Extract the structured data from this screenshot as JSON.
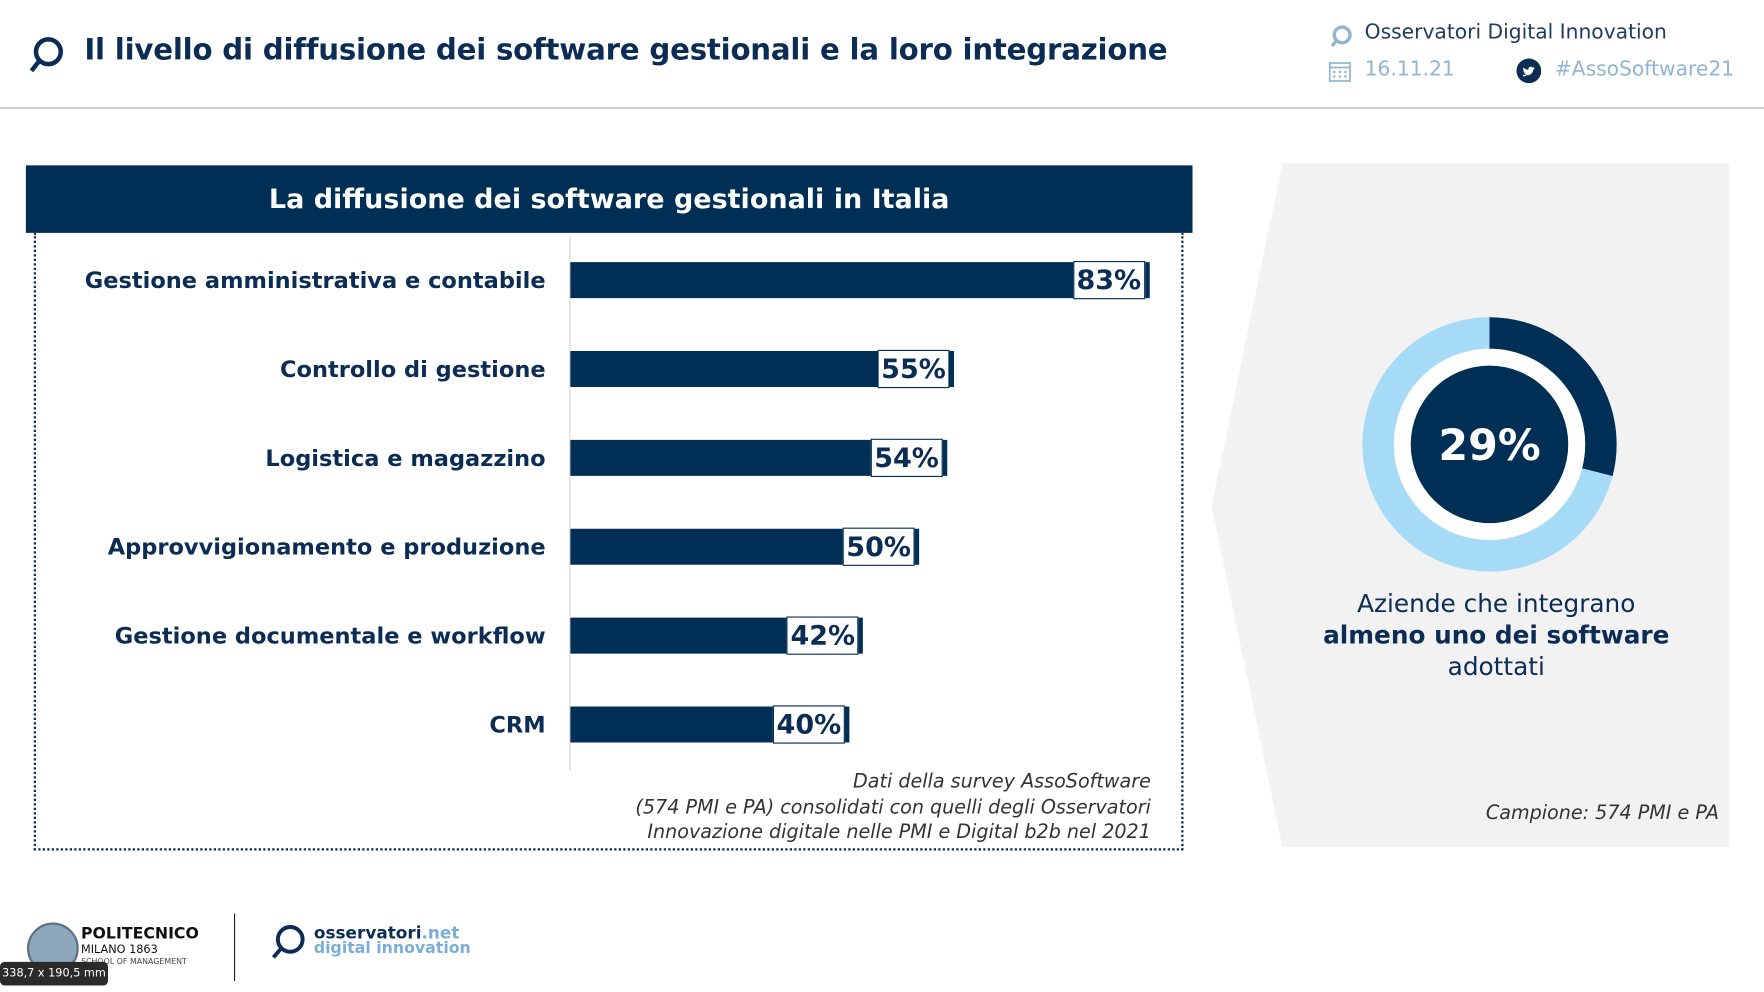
{
  "header": {
    "title": "Il livello di diffusione dei software gestionali e la loro integrazione",
    "brand": "Osservatori Digital Innovation",
    "date": "16.11.21",
    "hashtag": "#AssoSoftware21"
  },
  "chart_data": {
    "type": "bar",
    "orientation": "horizontal",
    "title": "La diffusione dei software gestionali in Italia",
    "categories": [
      "Gestione amministrativa e contabile",
      "Controllo di gestione",
      "Logistica e magazzino",
      "Approvvigionamento e produzione",
      "Gestione documentale e workflow",
      "CRM"
    ],
    "values": [
      83,
      55,
      54,
      50,
      42,
      40
    ],
    "labels": [
      "83%",
      "55%",
      "54%",
      "50%",
      "42%",
      "40%"
    ],
    "unit": "%",
    "note": [
      "Dati della survey AssoSoftware",
      "(574 PMI e PA) consolidati con quelli degli Osservatori",
      "Innovazione digitale nelle PMI e Digital b2b nel 2021"
    ],
    "colors": {
      "bar": "#002f56"
    }
  },
  "donut": {
    "value": 29,
    "label": "29%",
    "line1": "Aziende che integrano",
    "line2": "almeno uno dei software",
    "line3": "adottati",
    "sample": "Campione: 574 PMI e PA",
    "colors": {
      "value": "#002f56",
      "rest": "#a6dbf8"
    }
  },
  "footer": {
    "logo1": [
      "POLITECNICO",
      "MILANO 1863",
      "SCHOOL OF MANAGEMENT"
    ],
    "logo2": [
      "osservatori",
      ".net",
      "digital innovation"
    ],
    "dimension_tooltip": "338,7 x 190,5 mm"
  }
}
